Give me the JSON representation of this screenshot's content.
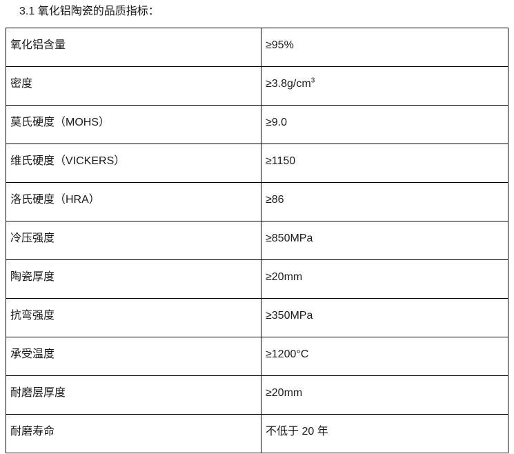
{
  "page": {
    "title": "3.1 氧化铝陶瓷的品质指标："
  },
  "table": {
    "rows": [
      {
        "label": "氧化铝含量",
        "value": "≥95%"
      },
      {
        "label": "密度",
        "value": "≥3.8g/cm",
        "value_sup": "3"
      },
      {
        "label": "莫氏硬度（MOHS）",
        "value": "≥9.0"
      },
      {
        "label": "维氏硬度（VICKERS）",
        "value": "≥1150"
      },
      {
        "label": "洛氏硬度（HRA）",
        "value": "≥86"
      },
      {
        "label": "冷压强度",
        "value": "≥850MPa"
      },
      {
        "label": "陶瓷厚度",
        "value": "≥20mm"
      },
      {
        "label": "抗弯强度",
        "value": "≥350MPa"
      },
      {
        "label": "承受温度",
        "value": "≥1200°C"
      },
      {
        "label": "耐磨层厚度",
        "value": "≥20mm"
      },
      {
        "label": "耐磨寿命",
        "value": "不低于 20 年"
      }
    ]
  },
  "colors": {
    "text": "#1a1a1a",
    "border": "#000000",
    "background": "#ffffff"
  }
}
